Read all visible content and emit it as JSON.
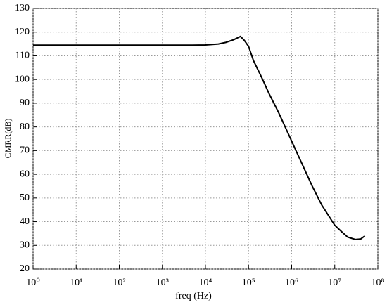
{
  "chart_data": {
    "type": "line",
    "xlabel": "freq (Hz)",
    "ylabel": "CMRR(dB)",
    "xscale": "log",
    "grid": true,
    "xlim": [
      1,
      100000000
    ],
    "ylim": [
      20,
      130
    ],
    "xticks": [
      {
        "value": 1,
        "label": "10⁰"
      },
      {
        "value": 10,
        "label": "10¹"
      },
      {
        "value": 100,
        "label": "10²"
      },
      {
        "value": 1000,
        "label": "10³"
      },
      {
        "value": 10000,
        "label": "10⁴"
      },
      {
        "value": 100000,
        "label": "10⁵"
      },
      {
        "value": 1000000,
        "label": "10⁶"
      },
      {
        "value": 10000000,
        "label": "10⁷"
      },
      {
        "value": 100000000,
        "label": "10⁸"
      }
    ],
    "yticks": [
      20,
      30,
      40,
      50,
      60,
      70,
      80,
      90,
      100,
      110,
      120,
      130
    ],
    "series": [
      {
        "color": "#000000",
        "x": [
          1,
          10,
          100,
          1000,
          5000,
          10000,
          20000,
          30000,
          45000,
          65000,
          80000,
          100000,
          130000,
          200000,
          300000,
          500000,
          1000000,
          2000000,
          3000000,
          5000000,
          10000000,
          15000000,
          20000000,
          30000000,
          40000000,
          50000000
        ],
        "values": [
          114.5,
          114.5,
          114.5,
          114.5,
          114.5,
          114.6,
          115,
          115.7,
          116.8,
          118.2,
          116.5,
          114,
          108,
          101,
          94,
          86,
          74,
          62,
          55,
          47,
          38.5,
          35.5,
          33.5,
          32.5,
          32.7,
          34
        ]
      }
    ]
  }
}
